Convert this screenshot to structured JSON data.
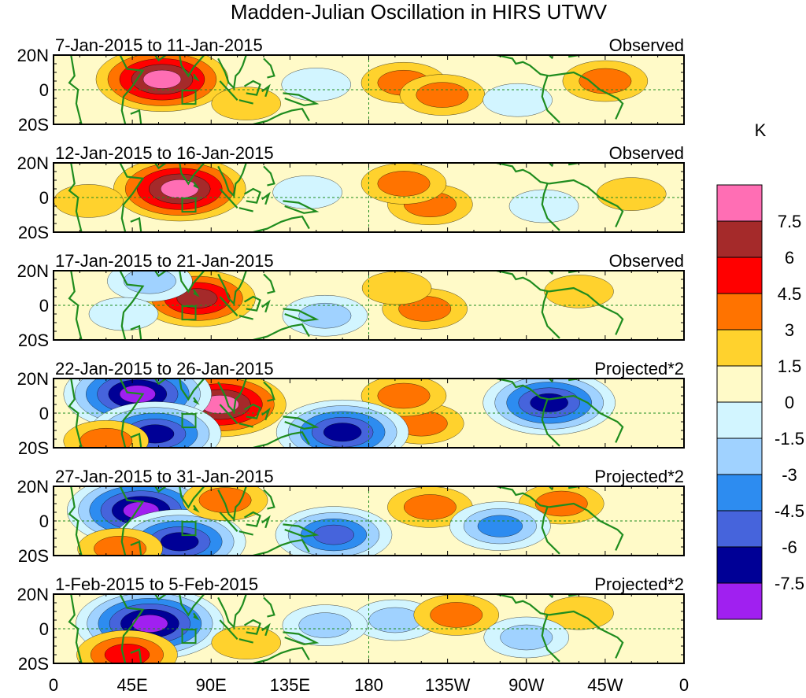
{
  "chart_data": {
    "type": "heatmap",
    "title": "Madden-Julian Oscillation in HIRS UTWV",
    "colorbar": {
      "unit_label": "K",
      "levels": [
        "7.5",
        "6",
        "4.5",
        "3",
        "1.5",
        "0",
        "-1.5",
        "-3",
        "-4.5",
        "-6",
        "-7.5"
      ],
      "colors": [
        "#ff6eb4",
        "#a52a2a",
        "#ff0000",
        "#ff7300",
        "#ffd22d",
        "#fffac8",
        "#d2f5ff",
        "#a0d2ff",
        "#2d8cf0",
        "#4664dc",
        "#000096",
        "#a020f0"
      ]
    },
    "x_ticks": [
      "0",
      "45E",
      "90E",
      "135E",
      "180",
      "135W",
      "90W",
      "45W",
      "0"
    ],
    "y_ticks": [
      "20N",
      "0",
      "20S"
    ],
    "panels": [
      {
        "period": "7-Jan-2015 to 11-Jan-2015",
        "type_label": "Observed",
        "anomalies": [
          {
            "lon": 62,
            "lat": 6,
            "value": 8.5
          },
          {
            "lon": 200,
            "lat": 4,
            "value": 3.5
          },
          {
            "lon": 222,
            "lat": -3,
            "value": 4
          },
          {
            "lon": 315,
            "lat": 5,
            "value": 3
          },
          {
            "lon": 110,
            "lat": -8,
            "value": 2
          },
          {
            "lon": 150,
            "lat": 3,
            "value": -1.5
          },
          {
            "lon": 265,
            "lat": -6,
            "value": -1.5
          }
        ]
      },
      {
        "period": "12-Jan-2015 to 16-Jan-2015",
        "type_label": "Observed",
        "anomalies": [
          {
            "lon": 72,
            "lat": 5,
            "value": 8.5
          },
          {
            "lon": 215,
            "lat": -4,
            "value": 4
          },
          {
            "lon": 200,
            "lat": 8,
            "value": 3
          },
          {
            "lon": 330,
            "lat": 2,
            "value": 2
          },
          {
            "lon": 20,
            "lat": -2,
            "value": 1.5
          },
          {
            "lon": 145,
            "lat": 3,
            "value": -1.5
          },
          {
            "lon": 280,
            "lat": -5,
            "value": -1.5
          }
        ]
      },
      {
        "period": "17-Jan-2015 to 21-Jan-2015",
        "type_label": "Observed",
        "anomalies": [
          {
            "lon": 82,
            "lat": 4,
            "value": 6.5
          },
          {
            "lon": 212,
            "lat": -2,
            "value": 3.5
          },
          {
            "lon": 196,
            "lat": 10,
            "value": 2
          },
          {
            "lon": 300,
            "lat": 8,
            "value": 1.5
          },
          {
            "lon": 55,
            "lat": 14,
            "value": -3
          },
          {
            "lon": 40,
            "lat": -5,
            "value": -1.5
          },
          {
            "lon": 155,
            "lat": -6,
            "value": -2
          }
        ]
      },
      {
        "period": "22-Jan-2015 to 26-Jan-2015",
        "type_label": "Projected*2",
        "anomalies": [
          {
            "lon": 95,
            "lat": 5,
            "value": 8.5
          },
          {
            "lon": 48,
            "lat": 11,
            "value": -9
          },
          {
            "lon": 58,
            "lat": -12,
            "value": -6.5
          },
          {
            "lon": 210,
            "lat": -6,
            "value": 4
          },
          {
            "lon": 200,
            "lat": 10,
            "value": 4
          },
          {
            "lon": 283,
            "lat": 6,
            "value": -6.5
          },
          {
            "lon": 165,
            "lat": -11,
            "value": -6.5
          },
          {
            "lon": 30,
            "lat": -16,
            "value": 4
          }
        ]
      },
      {
        "period": "27-Jan-2015 to 31-Jan-2015",
        "type_label": "Projected*2",
        "anomalies": [
          {
            "lon": 50,
            "lat": 6,
            "value": -9
          },
          {
            "lon": 72,
            "lat": -12,
            "value": -6.5
          },
          {
            "lon": 98,
            "lat": 12,
            "value": 4
          },
          {
            "lon": 38,
            "lat": -16,
            "value": 4
          },
          {
            "lon": 160,
            "lat": -8,
            "value": -5
          },
          {
            "lon": 215,
            "lat": 8,
            "value": 3
          },
          {
            "lon": 290,
            "lat": 10,
            "value": 3
          },
          {
            "lon": 255,
            "lat": -3,
            "value": -4.5
          }
        ]
      },
      {
        "period": "1-Feb-2015 to 5-Feb-2015",
        "type_label": "Projected*2",
        "anomalies": [
          {
            "lon": 55,
            "lat": 3,
            "value": -8
          },
          {
            "lon": 42,
            "lat": -15,
            "value": 4.5
          },
          {
            "lon": 195,
            "lat": 5,
            "value": -3
          },
          {
            "lon": 230,
            "lat": 8,
            "value": 3
          },
          {
            "lon": 300,
            "lat": 9,
            "value": 2
          },
          {
            "lon": 110,
            "lat": -8,
            "value": 1.5
          },
          {
            "lon": 155,
            "lat": 2,
            "value": -2.5
          },
          {
            "lon": 270,
            "lat": -5,
            "value": -2
          }
        ]
      }
    ]
  }
}
